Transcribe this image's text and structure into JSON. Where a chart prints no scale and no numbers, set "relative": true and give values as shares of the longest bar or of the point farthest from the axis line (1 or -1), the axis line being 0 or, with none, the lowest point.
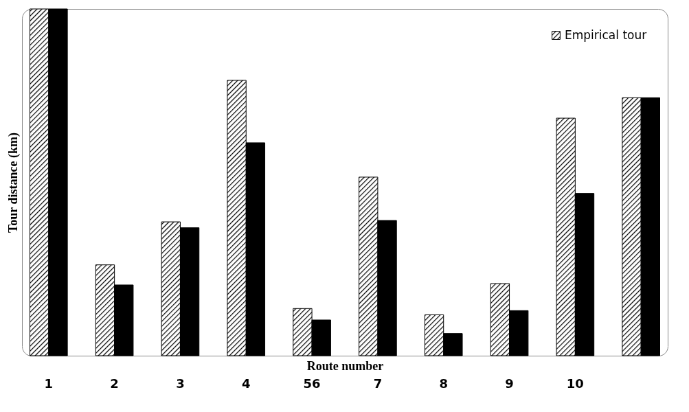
{
  "chart_data": {
    "type": "bar",
    "xlabel": "Route number",
    "ylabel": "Tour distance (km)",
    "relative": true,
    "legend": "top right",
    "categories": [
      "1",
      "2",
      "3",
      "4",
      "56",
      "7",
      "8",
      "9",
      "10",
      null
    ],
    "series": [
      {
        "name": "Empirical tour",
        "color": "#000000",
        "values": [
          1,
          0.262,
          0.386,
          0.794,
          0.136,
          0.515,
          0.118,
          0.208,
          0.685,
          0.744
        ]
      },
      {
        "color": "#000000",
        "values": [
          1,
          0.204,
          0.369,
          0.614,
          0.103,
          0.39,
          0.064,
          0.13,
          0.468,
          0.744
        ]
      }
    ]
  }
}
